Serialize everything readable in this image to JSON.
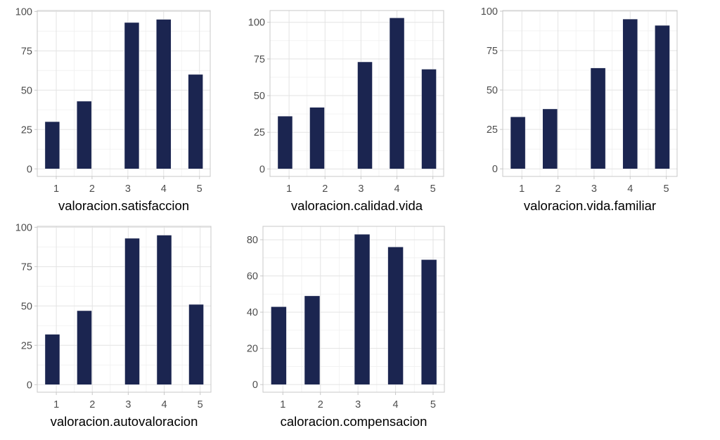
{
  "chart_data": [
    {
      "type": "bar",
      "title": "",
      "xlabel": "valoracion.satisfaccion",
      "ylabel": "",
      "x_tick_labels": [
        "1",
        "2",
        "3",
        "4",
        "5"
      ],
      "x_ticks": [
        1,
        2,
        3,
        4,
        5
      ],
      "y_tick_labels": [
        "0",
        "25",
        "50",
        "75",
        "100"
      ],
      "y_ticks": [
        0,
        25,
        50,
        75,
        100
      ],
      "bar_x_centers": [
        0.89,
        1.78,
        3.11,
        4.0,
        4.89
      ],
      "bar_width": 0.41,
      "values": [
        30,
        43,
        93,
        95,
        60
      ],
      "xlim": [
        0.47,
        5.3
      ],
      "ylim": [
        -4.8,
        100.6
      ],
      "grid": true,
      "legend": "none",
      "bar_color": "#1b2550"
    },
    {
      "type": "bar",
      "title": "",
      "xlabel": "valoracion.calidad.vida",
      "ylabel": "",
      "x_tick_labels": [
        "1",
        "2",
        "3",
        "4",
        "5"
      ],
      "x_ticks": [
        1,
        2,
        3,
        4,
        5
      ],
      "y_tick_labels": [
        "0",
        "25",
        "50",
        "75",
        "100"
      ],
      "y_ticks": [
        0,
        25,
        50,
        75,
        100
      ],
      "bar_x_centers": [
        0.89,
        1.78,
        3.11,
        4.0,
        4.89
      ],
      "bar_width": 0.41,
      "values": [
        36,
        42,
        73,
        103,
        68
      ],
      "xlim": [
        0.47,
        5.3
      ],
      "ylim": [
        -5.1,
        108.0
      ],
      "grid": true,
      "legend": "none",
      "bar_color": "#1b2550"
    },
    {
      "type": "bar",
      "title": "",
      "xlabel": "valoracion.vida.familiar",
      "ylabel": "",
      "x_tick_labels": [
        "1",
        "2",
        "3",
        "4",
        "5"
      ],
      "x_ticks": [
        1,
        2,
        3,
        4,
        5
      ],
      "y_tick_labels": [
        "0",
        "25",
        "50",
        "75",
        "100"
      ],
      "y_ticks": [
        0,
        25,
        50,
        75,
        100
      ],
      "bar_x_centers": [
        0.89,
        1.78,
        3.11,
        4.0,
        4.89
      ],
      "bar_width": 0.41,
      "values": [
        33,
        38,
        64,
        95,
        91
      ],
      "xlim": [
        0.47,
        5.3
      ],
      "ylim": [
        -4.8,
        100.4
      ],
      "grid": true,
      "legend": "none",
      "bar_color": "#1b2550"
    },
    {
      "type": "bar",
      "title": "",
      "xlabel": "valoracion.autovaloracion",
      "ylabel": "",
      "x_tick_labels": [
        "1",
        "2",
        "3",
        "4",
        "5"
      ],
      "x_ticks": [
        1,
        2,
        3,
        4,
        5
      ],
      "y_tick_labels": [
        "0",
        "25",
        "50",
        "75",
        "100"
      ],
      "y_ticks": [
        0,
        25,
        50,
        75,
        100
      ],
      "bar_x_centers": [
        0.89,
        1.78,
        3.11,
        4.0,
        4.89
      ],
      "bar_width": 0.41,
      "values": [
        32,
        47,
        93,
        95,
        51
      ],
      "xlim": [
        0.47,
        5.3
      ],
      "ylim": [
        -4.8,
        100.6
      ],
      "grid": true,
      "legend": "none",
      "bar_color": "#1b2550"
    },
    {
      "type": "bar",
      "title": "",
      "xlabel": "caloracion.compensacion",
      "ylabel": "",
      "x_tick_labels": [
        "1",
        "2",
        "3",
        "4",
        "5"
      ],
      "x_ticks": [
        1,
        2,
        3,
        4,
        5
      ],
      "y_tick_labels": [
        "0",
        "20",
        "40",
        "60",
        "80"
      ],
      "y_ticks": [
        0,
        20,
        40,
        60,
        80
      ],
      "bar_x_centers": [
        0.89,
        1.78,
        3.11,
        4.0,
        4.89
      ],
      "bar_width": 0.41,
      "values": [
        43,
        49,
        83,
        76,
        69
      ],
      "xlim": [
        0.47,
        5.3
      ],
      "ylim": [
        -4.2,
        87.4
      ],
      "grid": true,
      "legend": "none",
      "bar_color": "#1b2550"
    }
  ]
}
